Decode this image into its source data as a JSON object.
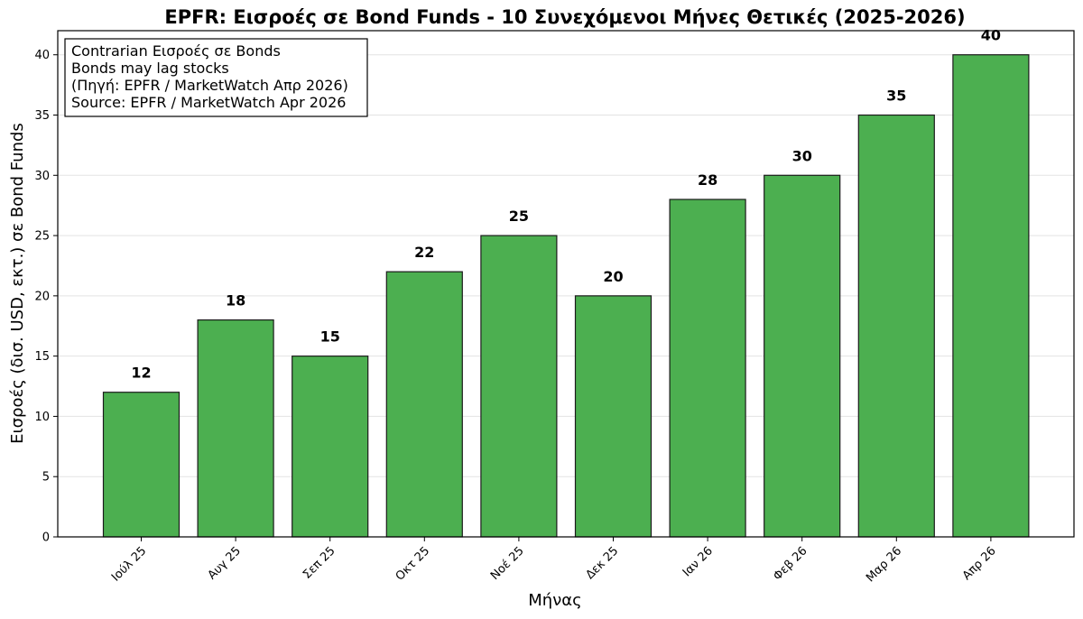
{
  "chart_data": {
    "type": "bar",
    "title": "EPFR: Εισροές σε Bond Funds - 10 Συνεχόμενοι Μήνες Θετικές (2025-2026)",
    "xlabel": "Μήνας",
    "ylabel": "Εισροές (δισ. USD, εκτ.) σε Bond Funds",
    "categories": [
      "Ιούλ 25",
      "Αυγ 25",
      "Σεπ 25",
      "Οκτ 25",
      "Νοέ 25",
      "Δεκ 25",
      "Ιαν 26",
      "Φεβ 26",
      "Μαρ 26",
      "Απρ 26"
    ],
    "values": [
      12,
      18,
      15,
      22,
      25,
      20,
      28,
      30,
      35,
      40
    ],
    "ylim": [
      0,
      42
    ],
    "yticks": [
      0,
      5,
      10,
      15,
      20,
      25,
      30,
      35,
      40
    ],
    "grid": "horizontal",
    "bar_color": "#4caf50",
    "annotation": [
      "Contrarian Εισροές σε Bonds",
      "Bonds may lag stocks",
      "(Πηγή: EPFR / MarketWatch Απρ 2026)",
      "Source: EPFR / MarketWatch Apr 2026"
    ]
  }
}
